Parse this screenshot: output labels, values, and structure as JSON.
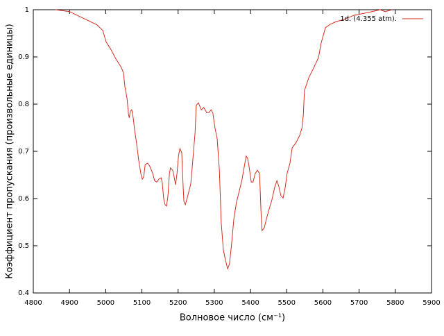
{
  "chart_data": {
    "type": "line",
    "xlabel": "Волновое число (см⁻¹)",
    "ylabel": "Коэффициент пропускания (произвольные единицы)",
    "xlim": [
      4800,
      5900
    ],
    "xticks": [
      4800,
      4900,
      5000,
      5100,
      5200,
      5300,
      5400,
      5500,
      5600,
      5700,
      5800,
      5900
    ],
    "ylim": [
      0.4,
      1
    ],
    "yticks": [
      0.4,
      0.5,
      0.6,
      0.7,
      0.8,
      0.9,
      1
    ],
    "legend": "top-right",
    "series": [
      {
        "name": "1d. (4.355 atm).",
        "color": "#d62d20",
        "x": [
          4861,
          4900,
          4976,
          4992,
          5001,
          5015,
          5028,
          5043,
          5049,
          5053,
          5059,
          5063,
          5065,
          5068,
          5072,
          5076,
          5080,
          5085,
          5091,
          5097,
          5101,
          5105,
          5109,
          5116,
          5122,
          5130,
          5135,
          5141,
          5147,
          5153,
          5156,
          5160,
          5164,
          5168,
          5172,
          5176,
          5179,
          5185,
          5189,
          5193,
          5197,
          5201,
          5205,
          5210,
          5214,
          5216,
          5220,
          5225,
          5235,
          5241,
          5247,
          5250,
          5256,
          5264,
          5271,
          5279,
          5285,
          5291,
          5296,
          5302,
          5308,
          5314,
          5319,
          5325,
          5331,
          5337,
          5342,
          5348,
          5354,
          5361,
          5369,
          5376,
          5381,
          5388,
          5392,
          5396,
          5402,
          5407,
          5413,
          5419,
          5425,
          5429,
          5431,
          5432,
          5438,
          5444,
          5452,
          5459,
          5467,
          5473,
          5478,
          5484,
          5490,
          5496,
          5501,
          5509,
          5515,
          5526,
          5536,
          5542,
          5546,
          5549,
          5561,
          5574,
          5588,
          5595,
          5607,
          5620,
          5637,
          5657,
          5685,
          5724,
          5758,
          5772,
          5791
        ],
        "values": [
          1.0,
          0.996,
          0.968,
          0.956,
          0.932,
          0.915,
          0.896,
          0.878,
          0.866,
          0.837,
          0.812,
          0.778,
          0.771,
          0.785,
          0.788,
          0.771,
          0.744,
          0.719,
          0.682,
          0.653,
          0.641,
          0.646,
          0.672,
          0.675,
          0.668,
          0.653,
          0.638,
          0.635,
          0.641,
          0.644,
          0.635,
          0.601,
          0.587,
          0.584,
          0.606,
          0.653,
          0.665,
          0.66,
          0.646,
          0.629,
          0.653,
          0.69,
          0.706,
          0.697,
          0.624,
          0.594,
          0.587,
          0.601,
          0.631,
          0.685,
          0.741,
          0.797,
          0.803,
          0.788,
          0.793,
          0.782,
          0.782,
          0.788,
          0.781,
          0.749,
          0.726,
          0.66,
          0.55,
          0.491,
          0.469,
          0.451,
          0.462,
          0.506,
          0.557,
          0.591,
          0.616,
          0.638,
          0.66,
          0.69,
          0.685,
          0.668,
          0.635,
          0.635,
          0.653,
          0.66,
          0.653,
          0.572,
          0.543,
          0.532,
          0.538,
          0.557,
          0.579,
          0.597,
          0.624,
          0.638,
          0.626,
          0.606,
          0.601,
          0.624,
          0.653,
          0.675,
          0.707,
          0.719,
          0.734,
          0.749,
          0.778,
          0.829,
          0.856,
          0.876,
          0.899,
          0.929,
          0.962,
          0.969,
          0.975,
          0.979,
          0.988,
          0.994,
          1.0,
          0.996,
          1.0
        ]
      }
    ]
  }
}
